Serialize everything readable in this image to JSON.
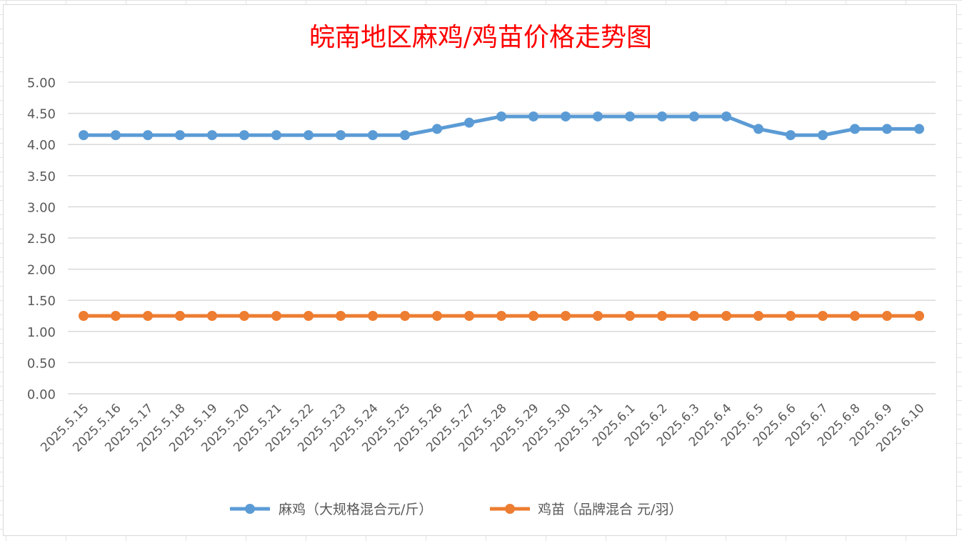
{
  "chart_data": {
    "type": "line",
    "title": "皖南地区麻鸡/鸡苗价格走势图",
    "xlabel": "",
    "ylabel": "",
    "ylim": [
      0,
      5
    ],
    "ytick_step": 0.5,
    "grid": true,
    "legend_position": "bottom",
    "categories": [
      "2025.5.15",
      "2025.5.16",
      "2025.5.17",
      "2025.5.18",
      "2025.5.19",
      "2025.5.20",
      "2025.5.21",
      "2025.5.22",
      "2025.5.23",
      "2025.5.24",
      "2025.5.25",
      "2025.5.26",
      "2025.5.27",
      "2025.5.28",
      "2025.5.29",
      "2025.5.30",
      "2025.5.31",
      "2025.6.1",
      "2025.6.2",
      "2025.6.3",
      "2025.6.4",
      "2025.6.5",
      "2025.6.6",
      "2025.6.7",
      "2025.6.8",
      "2025.6.9",
      "2025.6.10"
    ],
    "yticks": [
      "0.00",
      "0.50",
      "1.00",
      "1.50",
      "2.00",
      "2.50",
      "3.00",
      "3.50",
      "4.00",
      "4.50",
      "5.00"
    ],
    "series": [
      {
        "name": "麻鸡（大规格混合元/斤）",
        "color": "#5b9bd5",
        "values": [
          4.15,
          4.15,
          4.15,
          4.15,
          4.15,
          4.15,
          4.15,
          4.15,
          4.15,
          4.15,
          4.15,
          4.25,
          4.35,
          4.45,
          4.45,
          4.45,
          4.45,
          4.45,
          4.45,
          4.45,
          4.45,
          4.25,
          4.15,
          4.15,
          4.25,
          4.25,
          4.25
        ]
      },
      {
        "name": "鸡苗（品牌混合 元/羽）",
        "color": "#ed7d31",
        "values": [
          1.25,
          1.25,
          1.25,
          1.25,
          1.25,
          1.25,
          1.25,
          1.25,
          1.25,
          1.25,
          1.25,
          1.25,
          1.25,
          1.25,
          1.25,
          1.25,
          1.25,
          1.25,
          1.25,
          1.25,
          1.25,
          1.25,
          1.25,
          1.25,
          1.25,
          1.25,
          1.25
        ]
      }
    ]
  }
}
